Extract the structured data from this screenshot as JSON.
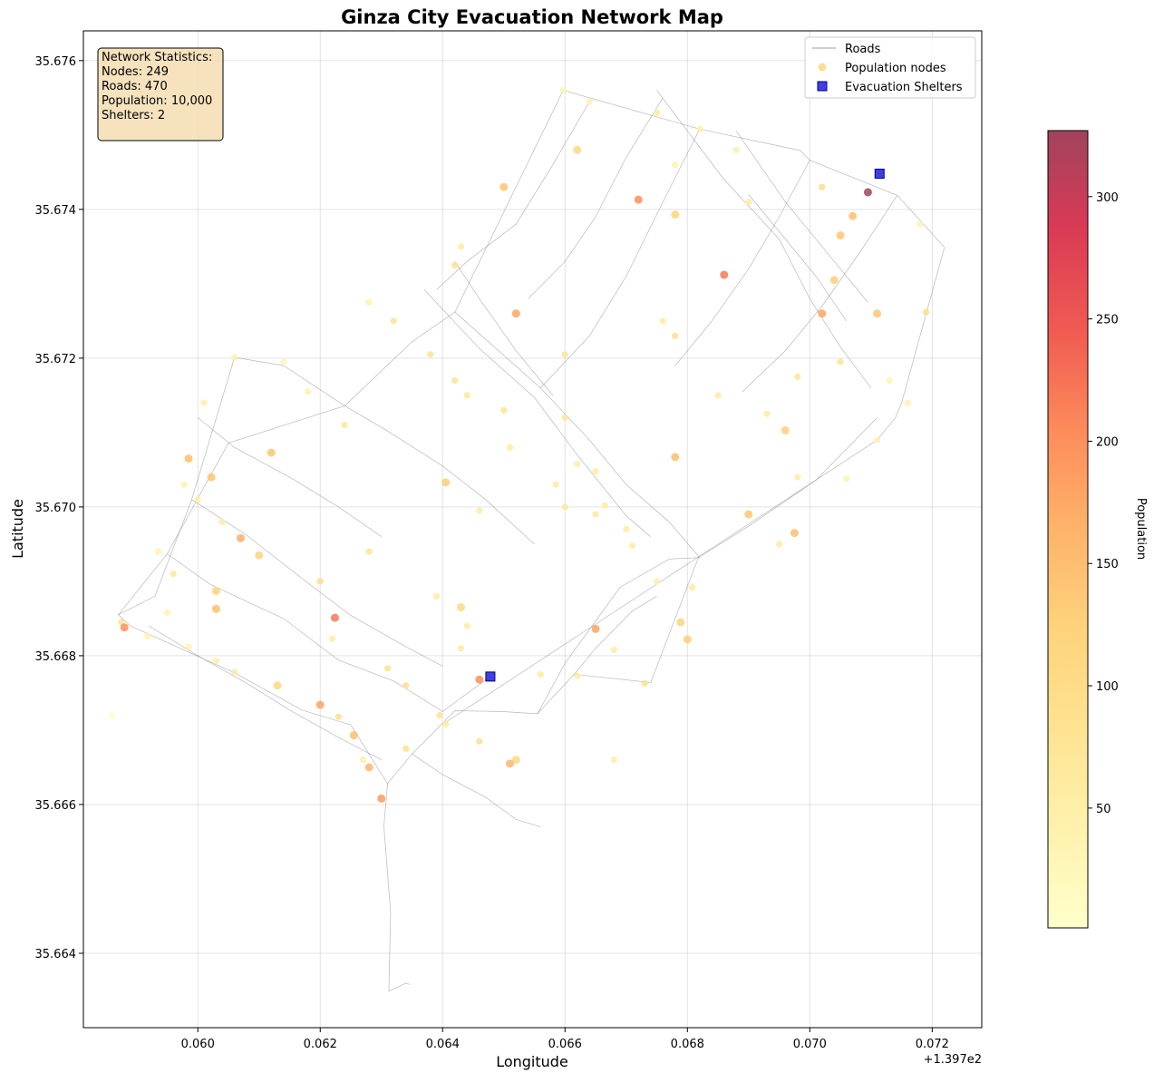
{
  "chart_data": {
    "type": "scatter",
    "title": "Ginza City Evacuation Network Map",
    "xlabel": "Longitude",
    "ylabel": "Latitude",
    "x_offset_label": "+1.397e2",
    "xlim": [
      0.05813,
      0.07281
    ],
    "ylim": [
      35.663,
      35.6764
    ],
    "x_ticks": [
      0.06,
      0.062,
      0.064,
      0.066,
      0.068,
      0.07,
      0.072
    ],
    "x_tick_labels": [
      "0.060",
      "0.062",
      "0.064",
      "0.066",
      "0.068",
      "0.070",
      "0.072"
    ],
    "y_ticks": [
      35.664,
      35.666,
      35.668,
      35.67,
      35.672,
      35.674,
      35.676
    ],
    "y_tick_labels": [
      "35.664",
      "35.666",
      "35.668",
      "35.670",
      "35.672",
      "35.674",
      "35.676"
    ],
    "grid": true,
    "legend_position": "top-right",
    "legend": [
      {
        "name": "Roads",
        "kind": "line",
        "color": "#9e9e9e"
      },
      {
        "name": "Population nodes",
        "kind": "point",
        "color": "#fdd98b"
      },
      {
        "name": "Evacuation Shelters",
        "kind": "square",
        "color": "#1f1fdc"
      }
    ],
    "stats_box": [
      "Network Statistics:",
      "Nodes: 249",
      "Roads: 470",
      "Population: 10,000",
      "Shelters: 2"
    ],
    "colorbar": {
      "label": "Population",
      "min": 1,
      "max": 327,
      "ticks": [
        50,
        100,
        150,
        200,
        250,
        300
      ],
      "tick_labels": [
        "50",
        "100",
        "150",
        "200",
        "250",
        "300"
      ],
      "colormap": "YlOrRd"
    },
    "shelters": [
      {
        "x": 0.06478,
        "y": 35.66772
      },
      {
        "x": 0.07114,
        "y": 35.67448
      }
    ],
    "roads": [
      [
        [
          0.06597,
          35.6756
        ],
        [
          0.0682,
          35.67508
        ],
        [
          0.06985,
          35.67479
        ],
        [
          0.07,
          35.67466
        ],
        [
          0.07143,
          35.67419
        ],
        [
          0.0722,
          35.67349
        ],
        [
          0.0715,
          35.6714
        ],
        [
          0.0714,
          35.6712
        ],
        [
          0.0711,
          35.6709
        ],
        [
          0.064,
          35.66708
        ]
      ],
      [
        [
          0.06597,
          35.6756
        ],
        [
          0.0642,
          35.67262
        ],
        [
          0.0635,
          35.67222
        ],
        [
          0.0624,
          35.67136
        ],
        [
          0.0605,
          35.67086
        ],
        [
          0.0595,
          35.66937
        ],
        [
          0.0587,
          35.66855
        ],
        [
          0.0589,
          35.6684
        ],
        [
          0.0606,
          35.66777
        ],
        [
          0.0617,
          35.66727
        ],
        [
          0.0625,
          35.66707
        ],
        [
          0.0631,
          35.66628
        ],
        [
          0.0635,
          35.66668
        ],
        [
          0.0642,
          35.66726
        ],
        [
          0.06495,
          35.66725
        ],
        [
          0.06555,
          35.66722
        ],
        [
          0.06615,
          35.66775
        ],
        [
          0.0674,
          35.66764
        ],
        [
          0.06818,
          35.66932
        ],
        [
          0.069,
          35.66974
        ],
        [
          0.0701,
          35.67036
        ],
        [
          0.0711,
          35.6712
        ]
      ],
      [
        [
          0.0631,
          35.66628
        ],
        [
          0.06304,
          35.66571
        ],
        [
          0.06315,
          35.66454
        ],
        [
          0.06312,
          35.66349
        ],
        [
          0.0634,
          35.6636
        ],
        [
          0.06346,
          35.66358
        ]
      ],
      [
        [
          0.0606,
          35.67201
        ],
        [
          0.0599,
          35.6701
        ],
        [
          0.0593,
          35.6688
        ],
        [
          0.0587,
          35.66855
        ]
      ],
      [
        [
          0.0606,
          35.67201
        ],
        [
          0.0614,
          35.6719
        ],
        [
          0.0624,
          35.67136
        ]
      ],
      [
        [
          0.0642,
          35.67262
        ],
        [
          0.0656,
          35.6716
        ],
        [
          0.0664,
          35.6709
        ],
        [
          0.067,
          35.6703
        ],
        [
          0.0677,
          35.6698
        ],
        [
          0.0682,
          35.66932
        ]
      ],
      [
        [
          0.0595,
          35.66937
        ],
        [
          0.0602,
          35.66896
        ],
        [
          0.0614,
          35.6685
        ],
        [
          0.0623,
          35.66794
        ],
        [
          0.0632,
          35.66766
        ],
        [
          0.064,
          35.66725
        ],
        [
          0.06478,
          35.66772
        ]
      ],
      [
        [
          0.06555,
          35.66722
        ],
        [
          0.066,
          35.6679
        ],
        [
          0.0669,
          35.66892
        ],
        [
          0.0677,
          35.6693
        ],
        [
          0.0682,
          35.66932
        ]
      ],
      [
        [
          0.0637,
          35.67292
        ],
        [
          0.0646,
          35.67213
        ],
        [
          0.0655,
          35.67147
        ],
        [
          0.0662,
          35.6707
        ],
        [
          0.067,
          35.66988
        ],
        [
          0.0674,
          35.6696
        ]
      ],
      [
        [
          0.0675,
          35.6756
        ],
        [
          0.0686,
          35.6744
        ],
        [
          0.0695,
          35.6736
        ],
        [
          0.07,
          35.6728
        ],
        [
          0.0705,
          35.67215
        ],
        [
          0.071,
          35.6716
        ]
      ],
      [
        [
          0.0688,
          35.67505
        ],
        [
          0.0696,
          35.6741
        ],
        [
          0.0704,
          35.6733
        ],
        [
          0.07095,
          35.67275
        ]
      ],
      [
        [
          0.0624,
          35.67136
        ],
        [
          0.0631,
          35.67102
        ],
        [
          0.064,
          35.67055
        ],
        [
          0.0647,
          35.6701
        ],
        [
          0.0655,
          35.6695
        ]
      ],
      [
        [
          0.0599,
          35.6701
        ],
        [
          0.0608,
          35.66962
        ],
        [
          0.0617,
          35.66904
        ],
        [
          0.0625,
          35.66854
        ],
        [
          0.0634,
          35.66812
        ],
        [
          0.064,
          35.66786
        ]
      ],
      [
        [
          0.0664,
          35.67545
        ],
        [
          0.0658,
          35.6746
        ],
        [
          0.0652,
          35.6738
        ],
        [
          0.0644,
          35.6733
        ],
        [
          0.0639,
          35.67292
        ]
      ],
      [
        [
          0.0682,
          35.67508
        ],
        [
          0.0676,
          35.6741
        ],
        [
          0.067,
          35.6731
        ],
        [
          0.0664,
          35.6723
        ],
        [
          0.0656,
          35.6716
        ]
      ],
      [
        [
          0.07143,
          35.67419
        ],
        [
          0.0708,
          35.6734
        ],
        [
          0.0702,
          35.6727
        ],
        [
          0.0696,
          35.6721
        ],
        [
          0.0689,
          35.67155
        ]
      ],
      [
        [
          0.06,
          35.6712
        ],
        [
          0.0606,
          35.6708
        ],
        [
          0.0615,
          35.6704
        ],
        [
          0.0623,
          35.67
        ],
        [
          0.063,
          35.6696
        ]
      ],
      [
        [
          0.0592,
          35.6684
        ],
        [
          0.06,
          35.668
        ],
        [
          0.0608,
          35.66763
        ],
        [
          0.0615,
          35.66727
        ],
        [
          0.0623,
          35.6669
        ],
        [
          0.063,
          35.6666
        ]
      ],
      [
        [
          0.0642,
          35.6733
        ],
        [
          0.0646,
          35.6728
        ],
        [
          0.0652,
          35.6721
        ],
        [
          0.0658,
          35.6715
        ]
      ],
      [
        [
          0.069,
          35.6742
        ],
        [
          0.0695,
          35.6737
        ],
        [
          0.0701,
          35.6731
        ],
        [
          0.0706,
          35.6725
        ]
      ],
      [
        [
          0.0676,
          35.6755
        ],
        [
          0.067,
          35.6747
        ],
        [
          0.0665,
          35.6739
        ],
        [
          0.066,
          35.6733
        ],
        [
          0.0654,
          35.6728
        ]
      ],
      [
        [
          0.07,
          35.67466
        ],
        [
          0.0695,
          35.6739
        ],
        [
          0.069,
          35.6732
        ],
        [
          0.0684,
          35.6725
        ],
        [
          0.0678,
          35.6719
        ]
      ],
      [
        [
          0.0635,
          35.66668
        ],
        [
          0.064,
          35.6664
        ],
        [
          0.0647,
          35.6661
        ],
        [
          0.0652,
          35.6658
        ],
        [
          0.0656,
          35.6657
        ]
      ],
      [
        [
          0.06615,
          35.66775
        ],
        [
          0.0665,
          35.6681
        ],
        [
          0.0671,
          35.6686
        ],
        [
          0.0675,
          35.6688
        ]
      ]
    ],
    "nodes": [
      {
        "x": 0.06597,
        "y": 35.6756,
        "pop": 30
      },
      {
        "x": 0.0664,
        "y": 35.67545,
        "pop": 40
      },
      {
        "x": 0.0675,
        "y": 35.6753,
        "pop": 60
      },
      {
        "x": 0.0682,
        "y": 35.67508,
        "pop": 50
      },
      {
        "x": 0.0688,
        "y": 35.6748,
        "pop": 45
      },
      {
        "x": 0.065,
        "y": 35.6743,
        "pop": 140
      },
      {
        "x": 0.0662,
        "y": 35.6748,
        "pop": 110
      },
      {
        "x": 0.0678,
        "y": 35.6746,
        "pop": 40
      },
      {
        "x": 0.069,
        "y": 35.6741,
        "pop": 60
      },
      {
        "x": 0.0702,
        "y": 35.6743,
        "pop": 100
      },
      {
        "x": 0.07095,
        "y": 35.67423,
        "pop": 327
      },
      {
        "x": 0.0672,
        "y": 35.67413,
        "pop": 200
      },
      {
        "x": 0.0678,
        "y": 35.67393,
        "pop": 120
      },
      {
        "x": 0.0707,
        "y": 35.67391,
        "pop": 150
      },
      {
        "x": 0.0705,
        "y": 35.67365,
        "pop": 140
      },
      {
        "x": 0.0718,
        "y": 35.6738,
        "pop": 40
      },
      {
        "x": 0.0643,
        "y": 35.6735,
        "pop": 60
      },
      {
        "x": 0.0642,
        "y": 35.67325,
        "pop": 90
      },
      {
        "x": 0.0686,
        "y": 35.67312,
        "pop": 220
      },
      {
        "x": 0.0704,
        "y": 35.67305,
        "pop": 130
      },
      {
        "x": 0.0702,
        "y": 35.6726,
        "pop": 180
      },
      {
        "x": 0.0652,
        "y": 35.6726,
        "pop": 180
      },
      {
        "x": 0.0676,
        "y": 35.6725,
        "pop": 60
      },
      {
        "x": 0.0711,
        "y": 35.6726,
        "pop": 140
      },
      {
        "x": 0.0719,
        "y": 35.67262,
        "pop": 100
      },
      {
        "x": 0.0628,
        "y": 35.67275,
        "pop": 40
      },
      {
        "x": 0.0632,
        "y": 35.6725,
        "pop": 80
      },
      {
        "x": 0.0638,
        "y": 35.67205,
        "pop": 90
      },
      {
        "x": 0.066,
        "y": 35.67205,
        "pop": 80
      },
      {
        "x": 0.0678,
        "y": 35.6723,
        "pop": 90
      },
      {
        "x": 0.0698,
        "y": 35.67175,
        "pop": 70
      },
      {
        "x": 0.0705,
        "y": 35.67195,
        "pop": 80
      },
      {
        "x": 0.0713,
        "y": 35.6717,
        "pop": 40
      },
      {
        "x": 0.0716,
        "y": 35.6714,
        "pop": 40
      },
      {
        "x": 0.0606,
        "y": 35.67201,
        "pop": 40
      },
      {
        "x": 0.0614,
        "y": 35.67195,
        "pop": 30
      },
      {
        "x": 0.0642,
        "y": 35.6717,
        "pop": 80
      },
      {
        "x": 0.0644,
        "y": 35.6715,
        "pop": 70
      },
      {
        "x": 0.065,
        "y": 35.6713,
        "pop": 80
      },
      {
        "x": 0.0685,
        "y": 35.6715,
        "pop": 60
      },
      {
        "x": 0.0693,
        "y": 35.67125,
        "pop": 60
      },
      {
        "x": 0.0601,
        "y": 35.6714,
        "pop": 50
      },
      {
        "x": 0.0618,
        "y": 35.67155,
        "pop": 40
      },
      {
        "x": 0.0696,
        "y": 35.67103,
        "pop": 130
      },
      {
        "x": 0.0711,
        "y": 35.6709,
        "pop": 40
      },
      {
        "x": 0.0624,
        "y": 35.6711,
        "pop": 70
      },
      {
        "x": 0.066,
        "y": 35.6712,
        "pop": 70
      },
      {
        "x": 0.05985,
        "y": 35.67065,
        "pop": 150
      },
      {
        "x": 0.0612,
        "y": 35.67073,
        "pop": 140
      },
      {
        "x": 0.05978,
        "y": 35.6703,
        "pop": 40
      },
      {
        "x": 0.06022,
        "y": 35.6704,
        "pop": 140
      },
      {
        "x": 0.0651,
        "y": 35.6708,
        "pop": 60
      },
      {
        "x": 0.0678,
        "y": 35.67067,
        "pop": 150
      },
      {
        "x": 0.0662,
        "y": 35.67058,
        "pop": 50
      },
      {
        "x": 0.0665,
        "y": 35.67048,
        "pop": 60
      },
      {
        "x": 0.0698,
        "y": 35.6704,
        "pop": 60
      },
      {
        "x": 0.0706,
        "y": 35.67038,
        "pop": 40
      },
      {
        "x": 0.06405,
        "y": 35.67033,
        "pop": 130
      },
      {
        "x": 0.06585,
        "y": 35.6703,
        "pop": 60
      },
      {
        "x": 0.06,
        "y": 35.6701,
        "pop": 50
      },
      {
        "x": 0.0607,
        "y": 35.66958,
        "pop": 170
      },
      {
        "x": 0.0646,
        "y": 35.66995,
        "pop": 60
      },
      {
        "x": 0.066,
        "y": 35.67,
        "pop": 70
      },
      {
        "x": 0.06665,
        "y": 35.67002,
        "pop": 60
      },
      {
        "x": 0.069,
        "y": 35.6699,
        "pop": 140
      },
      {
        "x": 0.0665,
        "y": 35.6699,
        "pop": 70
      },
      {
        "x": 0.0604,
        "y": 35.6698,
        "pop": 60
      },
      {
        "x": 0.067,
        "y": 35.6697,
        "pop": 60
      },
      {
        "x": 0.06975,
        "y": 35.66965,
        "pop": 150
      },
      {
        "x": 0.061,
        "y": 35.66935,
        "pop": 120
      },
      {
        "x": 0.062,
        "y": 35.669,
        "pop": 100
      },
      {
        "x": 0.0628,
        "y": 35.6694,
        "pop": 80
      },
      {
        "x": 0.0671,
        "y": 35.66948,
        "pop": 60
      },
      {
        "x": 0.0695,
        "y": 35.6695,
        "pop": 60
      },
      {
        "x": 0.05935,
        "y": 35.6694,
        "pop": 40
      },
      {
        "x": 0.0596,
        "y": 35.6691,
        "pop": 70
      },
      {
        "x": 0.0603,
        "y": 35.66887,
        "pop": 120
      },
      {
        "x": 0.0639,
        "y": 35.6688,
        "pop": 60
      },
      {
        "x": 0.0643,
        "y": 35.66865,
        "pop": 110
      },
      {
        "x": 0.0675,
        "y": 35.669,
        "pop": 50
      },
      {
        "x": 0.0595,
        "y": 35.66858,
        "pop": 40
      },
      {
        "x": 0.0603,
        "y": 35.66863,
        "pop": 150
      },
      {
        "x": 0.06224,
        "y": 35.66851,
        "pop": 220
      },
      {
        "x": 0.06808,
        "y": 35.66892,
        "pop": 60
      },
      {
        "x": 0.06789,
        "y": 35.66845,
        "pop": 120
      },
      {
        "x": 0.05875,
        "y": 35.66845,
        "pop": 80
      },
      {
        "x": 0.0588,
        "y": 35.66838,
        "pop": 200
      },
      {
        "x": 0.0665,
        "y": 35.66836,
        "pop": 180
      },
      {
        "x": 0.0644,
        "y": 35.6684,
        "pop": 60
      },
      {
        "x": 0.068,
        "y": 35.66822,
        "pop": 130
      },
      {
        "x": 0.05918,
        "y": 35.66826,
        "pop": 40
      },
      {
        "x": 0.05985,
        "y": 35.66812,
        "pop": 40
      },
      {
        "x": 0.0622,
        "y": 35.66823,
        "pop": 60
      },
      {
        "x": 0.0643,
        "y": 35.6681,
        "pop": 60
      },
      {
        "x": 0.0668,
        "y": 35.66808,
        "pop": 60
      },
      {
        "x": 0.0656,
        "y": 35.66775,
        "pop": 60
      },
      {
        "x": 0.0603,
        "y": 35.66793,
        "pop": 50
      },
      {
        "x": 0.0631,
        "y": 35.66783,
        "pop": 90
      },
      {
        "x": 0.0606,
        "y": 35.66778,
        "pop": 60
      },
      {
        "x": 0.0646,
        "y": 35.66768,
        "pop": 200
      },
      {
        "x": 0.0662,
        "y": 35.66773,
        "pop": 60
      },
      {
        "x": 0.0673,
        "y": 35.66763,
        "pop": 90
      },
      {
        "x": 0.0613,
        "y": 35.6676,
        "pop": 110
      },
      {
        "x": 0.0634,
        "y": 35.6676,
        "pop": 90
      },
      {
        "x": 0.062,
        "y": 35.66734,
        "pop": 180
      },
      {
        "x": 0.06395,
        "y": 35.6672,
        "pop": 80
      },
      {
        "x": 0.0623,
        "y": 35.66718,
        "pop": 90
      },
      {
        "x": 0.06405,
        "y": 35.66708,
        "pop": 60
      },
      {
        "x": 0.06255,
        "y": 35.66693,
        "pop": 150
      },
      {
        "x": 0.0646,
        "y": 35.66685,
        "pop": 90
      },
      {
        "x": 0.0634,
        "y": 35.66675,
        "pop": 90
      },
      {
        "x": 0.0652,
        "y": 35.6666,
        "pop": 110
      },
      {
        "x": 0.0627,
        "y": 35.6666,
        "pop": 50
      },
      {
        "x": 0.0628,
        "y": 35.6665,
        "pop": 160
      },
      {
        "x": 0.0651,
        "y": 35.66655,
        "pop": 160
      },
      {
        "x": 0.063,
        "y": 35.66608,
        "pop": 190
      },
      {
        "x": 0.0668,
        "y": 35.6666,
        "pop": 50
      },
      {
        "x": 0.0586,
        "y": 35.6672,
        "pop": 10
      }
    ]
  }
}
